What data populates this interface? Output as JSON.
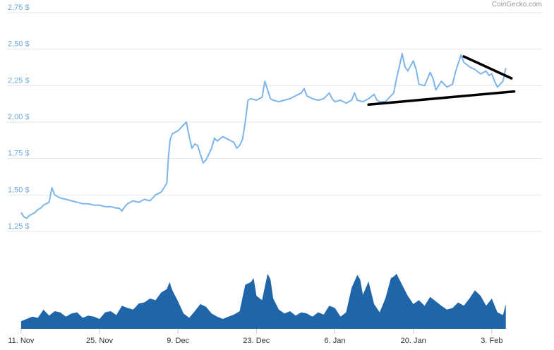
{
  "chart_data": [
    {
      "type": "line",
      "title": "",
      "xlabel": "",
      "ylabel": "",
      "credit": "CoinGecko.com",
      "y_ticks": [
        "1,25 $",
        "1,50 $",
        "1,75 $",
        "2,00 $",
        "2,25 $",
        "2,50 $",
        "2,75 $"
      ],
      "ylim": [
        1.25,
        2.75
      ],
      "x_ticks": [
        "11. Nov",
        "25. Nov",
        "9. Dec",
        "23. Dec",
        "6. Jan",
        "20. Jan",
        "3. Feb"
      ],
      "grid": true,
      "colors": {
        "price": "#7cb5ec",
        "volume": "#1f66a8",
        "trendlines": "#000000",
        "grid": "#e6e6e6"
      },
      "series": [
        {
          "values": [
            [
              0,
              1.38
            ],
            [
              0.5,
              1.35
            ],
            [
              1,
              1.34
            ],
            [
              1.5,
              1.36
            ],
            [
              2,
              1.37
            ],
            [
              2.5,
              1.38
            ],
            [
              3,
              1.4
            ],
            [
              3.5,
              1.41
            ],
            [
              4,
              1.43
            ],
            [
              4.5,
              1.44
            ],
            [
              5,
              1.45
            ],
            [
              5.5,
              1.55
            ],
            [
              6,
              1.5
            ],
            [
              6.5,
              1.49
            ],
            [
              7,
              1.48
            ],
            [
              8,
              1.47
            ],
            [
              9,
              1.46
            ],
            [
              10,
              1.45
            ],
            [
              11,
              1.44
            ],
            [
              12,
              1.44
            ],
            [
              13,
              1.43
            ],
            [
              14,
              1.43
            ],
            [
              15,
              1.42
            ],
            [
              16,
              1.42
            ],
            [
              17,
              1.41
            ],
            [
              17.5,
              1.41
            ],
            [
              18,
              1.39
            ],
            [
              18.5,
              1.42
            ],
            [
              19,
              1.44
            ],
            [
              20,
              1.46
            ],
            [
              21,
              1.45
            ],
            [
              22,
              1.47
            ],
            [
              23,
              1.46
            ],
            [
              24,
              1.5
            ],
            [
              25,
              1.52
            ],
            [
              25.5,
              1.55
            ],
            [
              26,
              1.58
            ],
            [
              26.3,
              1.76
            ],
            [
              26.6,
              1.88
            ],
            [
              27,
              1.92
            ],
            [
              28,
              1.94
            ],
            [
              29,
              1.98
            ],
            [
              29.5,
              2.0
            ],
            [
              30,
              1.9
            ],
            [
              30.5,
              1.82
            ],
            [
              31,
              1.85
            ],
            [
              31.5,
              1.84
            ],
            [
              32,
              1.78
            ],
            [
              32.5,
              1.72
            ],
            [
              33,
              1.74
            ],
            [
              34,
              1.82
            ],
            [
              34.5,
              1.89
            ],
            [
              35,
              1.87
            ],
            [
              36,
              1.9
            ],
            [
              37,
              1.88
            ],
            [
              38,
              1.86
            ],
            [
              38.5,
              1.82
            ],
            [
              39,
              1.84
            ],
            [
              39.5,
              1.88
            ],
            [
              40,
              2.0
            ],
            [
              40.5,
              2.15
            ],
            [
              41,
              2.16
            ],
            [
              42,
              2.15
            ],
            [
              43,
              2.17
            ],
            [
              43.5,
              2.28
            ],
            [
              44,
              2.22
            ],
            [
              44.5,
              2.16
            ],
            [
              45,
              2.15
            ],
            [
              46,
              2.14
            ],
            [
              47,
              2.15
            ],
            [
              48,
              2.16
            ],
            [
              49,
              2.18
            ],
            [
              50,
              2.2
            ],
            [
              50.5,
              2.23
            ],
            [
              51,
              2.18
            ],
            [
              52,
              2.16
            ],
            [
              53,
              2.15
            ],
            [
              54,
              2.16
            ],
            [
              55,
              2.2
            ],
            [
              55.5,
              2.16
            ],
            [
              56,
              2.14
            ],
            [
              57,
              2.15
            ],
            [
              58,
              2.13
            ],
            [
              59,
              2.15
            ],
            [
              59.5,
              2.2
            ],
            [
              60,
              2.15
            ],
            [
              61,
              2.14
            ],
            [
              62,
              2.16
            ],
            [
              63,
              2.19
            ],
            [
              63.5,
              2.15
            ],
            [
              64,
              2.14
            ],
            [
              65,
              2.14
            ],
            [
              66,
              2.18
            ],
            [
              66.5,
              2.2
            ],
            [
              67,
              2.3
            ],
            [
              67.5,
              2.38
            ],
            [
              68,
              2.47
            ],
            [
              68.5,
              2.38
            ],
            [
              69,
              2.35
            ],
            [
              70,
              2.42
            ],
            [
              70.5,
              2.36
            ],
            [
              71,
              2.26
            ],
            [
              72,
              2.25
            ],
            [
              73,
              2.34
            ],
            [
              73.5,
              2.3
            ],
            [
              74,
              2.22
            ],
            [
              75,
              2.28
            ],
            [
              76,
              2.24
            ],
            [
              77,
              2.26
            ],
            [
              77.5,
              2.34
            ],
            [
              78,
              2.4
            ],
            [
              78.5,
              2.46
            ],
            [
              79,
              2.41
            ],
            [
              80,
              2.38
            ],
            [
              81,
              2.36
            ],
            [
              82,
              2.33
            ],
            [
              83,
              2.35
            ],
            [
              83.5,
              2.32
            ],
            [
              84,
              2.33
            ],
            [
              84.5,
              2.28
            ],
            [
              85,
              2.24
            ],
            [
              85.5,
              2.26
            ],
            [
              86,
              2.28
            ],
            [
              86.5,
              2.37
            ]
          ]
        },
        {
          "name": "volume",
          "values": [
            [
              0,
              0.14
            ],
            [
              1,
              0.18
            ],
            [
              2,
              0.22
            ],
            [
              3,
              0.2
            ],
            [
              4,
              0.35
            ],
            [
              5,
              0.24
            ],
            [
              6,
              0.32
            ],
            [
              7,
              0.3
            ],
            [
              8,
              0.22
            ],
            [
              9,
              0.28
            ],
            [
              10,
              0.3
            ],
            [
              11,
              0.2
            ],
            [
              12,
              0.24
            ],
            [
              13,
              0.22
            ],
            [
              14,
              0.18
            ],
            [
              15,
              0.3
            ],
            [
              16,
              0.32
            ],
            [
              17,
              0.25
            ],
            [
              18,
              0.42
            ],
            [
              19,
              0.38
            ],
            [
              20,
              0.35
            ],
            [
              21,
              0.46
            ],
            [
              22,
              0.48
            ],
            [
              23,
              0.55
            ],
            [
              24,
              0.52
            ],
            [
              25,
              0.66
            ],
            [
              26,
              0.72
            ],
            [
              26.5,
              0.85
            ],
            [
              27,
              0.7
            ],
            [
              28,
              0.5
            ],
            [
              29,
              0.28
            ],
            [
              30,
              0.2
            ],
            [
              31,
              0.32
            ],
            [
              32,
              0.45
            ],
            [
              33,
              0.4
            ],
            [
              34,
              0.28
            ],
            [
              35,
              0.22
            ],
            [
              36,
              0.18
            ],
            [
              37,
              0.22
            ],
            [
              38,
              0.26
            ],
            [
              39,
              0.32
            ],
            [
              40,
              0.8
            ],
            [
              41,
              0.85
            ],
            [
              41.5,
              0.92
            ],
            [
              42,
              0.6
            ],
            [
              43,
              0.52
            ],
            [
              44,
              1.0
            ],
            [
              44.5,
              0.9
            ],
            [
              45,
              0.55
            ],
            [
              46,
              0.35
            ],
            [
              47,
              0.28
            ],
            [
              48,
              0.32
            ],
            [
              49,
              0.24
            ],
            [
              50,
              0.3
            ],
            [
              51,
              0.28
            ],
            [
              52,
              0.22
            ],
            [
              53,
              0.3
            ],
            [
              54,
              0.26
            ],
            [
              55,
              0.42
            ],
            [
              56,
              0.38
            ],
            [
              57,
              0.22
            ],
            [
              58,
              0.3
            ],
            [
              59,
              0.75
            ],
            [
              60,
              0.98
            ],
            [
              60.5,
              0.9
            ],
            [
              61,
              0.62
            ],
            [
              62,
              0.86
            ],
            [
              63,
              0.45
            ],
            [
              64,
              0.3
            ],
            [
              65,
              0.55
            ],
            [
              66,
              0.92
            ],
            [
              66.5,
              0.95
            ],
            [
              67,
              1.0
            ],
            [
              68,
              0.8
            ],
            [
              69,
              0.6
            ],
            [
              70,
              0.45
            ],
            [
              71,
              0.52
            ],
            [
              72,
              0.42
            ],
            [
              73,
              0.58
            ],
            [
              74,
              0.5
            ],
            [
              75,
              0.42
            ],
            [
              76,
              0.35
            ],
            [
              77,
              0.38
            ],
            [
              78,
              0.48
            ],
            [
              79,
              0.42
            ],
            [
              80,
              0.55
            ],
            [
              81,
              0.7
            ],
            [
              82,
              0.6
            ],
            [
              83,
              0.42
            ],
            [
              84,
              0.55
            ],
            [
              85,
              0.3
            ],
            [
              86,
              0.25
            ],
            [
              86.5,
              0.45
            ]
          ]
        }
      ],
      "annotations": [
        {
          "type": "trendline",
          "x1": 79,
          "y1": 2.45,
          "x2": 87.5,
          "y2": 2.3
        },
        {
          "type": "trendline",
          "x1": 62,
          "y1": 2.12,
          "x2": 88,
          "y2": 2.21
        }
      ]
    }
  ]
}
